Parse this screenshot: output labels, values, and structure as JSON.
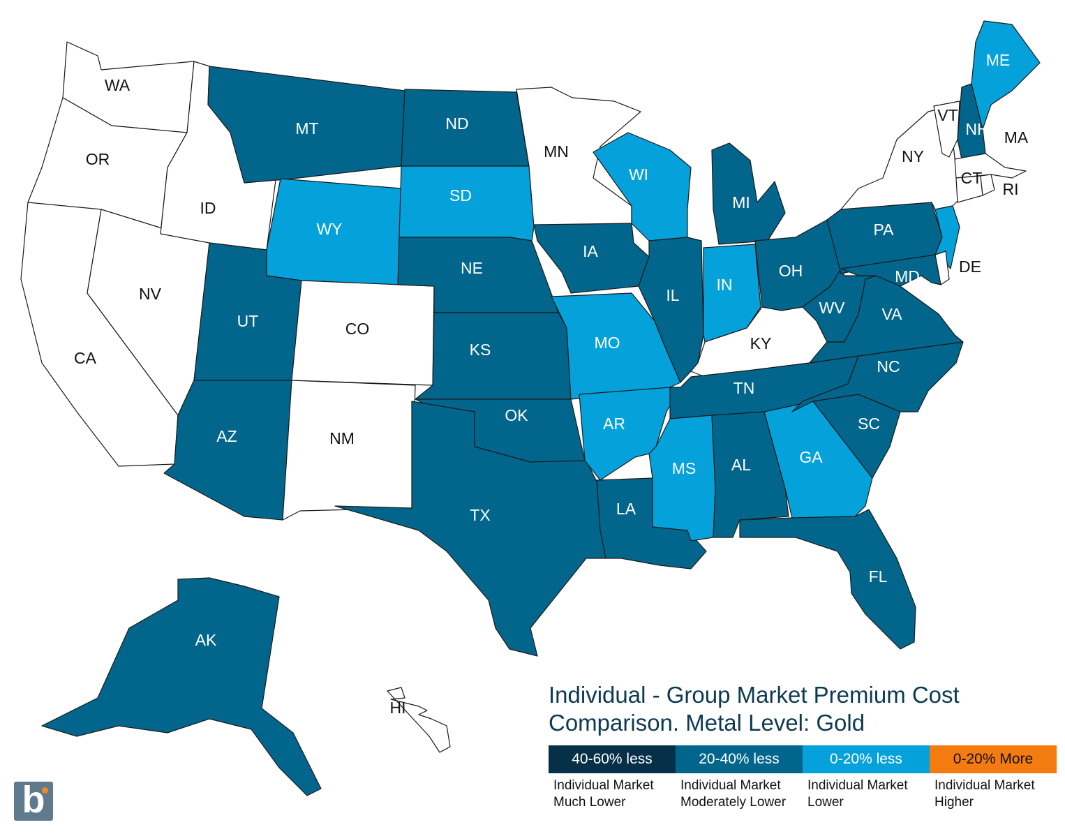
{
  "title": "Individual - Group Market Premium Cost Comparison. Metal Level: Gold",
  "legend": [
    {
      "label": "40-60% less",
      "description": "Individual Market Much Lower",
      "color": "#063047",
      "text_color": "#ffffff"
    },
    {
      "label": "20-40% less",
      "description": "Individual Market Moderately Lower",
      "color": "#02668c",
      "text_color": "#ffffff"
    },
    {
      "label": "0-20% less",
      "description": "Individual Market Lower",
      "color": "#04a1db",
      "text_color": "#ffffff"
    },
    {
      "label": "0-20% More",
      "description": "Individual Market Higher",
      "color": "#f47b0f",
      "text_color": "#111111"
    }
  ],
  "no_data_color": "#ffffff",
  "logo_icon": "b-logo-icon",
  "states": {
    "WA": {
      "category": null
    },
    "OR": {
      "category": null
    },
    "CA": {
      "category": null
    },
    "NV": {
      "category": null
    },
    "ID": {
      "category": null
    },
    "MT": {
      "category": "20-40% less"
    },
    "WY": {
      "category": "0-20% less"
    },
    "UT": {
      "category": "20-40% less"
    },
    "AZ": {
      "category": "20-40% less"
    },
    "CO": {
      "category": null
    },
    "NM": {
      "category": null
    },
    "ND": {
      "category": "20-40% less"
    },
    "SD": {
      "category": "0-20% less"
    },
    "NE": {
      "category": "20-40% less"
    },
    "KS": {
      "category": "20-40% less"
    },
    "OK": {
      "category": "20-40% less"
    },
    "TX": {
      "category": "20-40% less"
    },
    "MN": {
      "category": null
    },
    "IA": {
      "category": "20-40% less"
    },
    "MO": {
      "category": "0-20% less"
    },
    "AR": {
      "category": "0-20% less"
    },
    "LA": {
      "category": "20-40% less"
    },
    "WI": {
      "category": "0-20% less"
    },
    "IL": {
      "category": "20-40% less"
    },
    "MI": {
      "category": "20-40% less"
    },
    "IN": {
      "category": "0-20% less"
    },
    "OH": {
      "category": "20-40% less"
    },
    "KY": {
      "category": null
    },
    "TN": {
      "category": "20-40% less"
    },
    "MS": {
      "category": "0-20% less"
    },
    "AL": {
      "category": "20-40% less"
    },
    "GA": {
      "category": "0-20% less"
    },
    "FL": {
      "category": "20-40% less"
    },
    "SC": {
      "category": "20-40% less"
    },
    "NC": {
      "category": "20-40% less"
    },
    "VA": {
      "category": "20-40% less"
    },
    "WV": {
      "category": "20-40% less"
    },
    "PA": {
      "category": "20-40% less"
    },
    "NY": {
      "category": null
    },
    "VT": {
      "category": null
    },
    "NH": {
      "category": "20-40% less"
    },
    "ME": {
      "category": "0-20% less"
    },
    "MA": {
      "category": null
    },
    "CT": {
      "category": null
    },
    "RI": {
      "category": null
    },
    "NJ": {
      "category": "0-20% less"
    },
    "DE": {
      "category": null
    },
    "MD": {
      "category": "20-40% less"
    },
    "AK": {
      "category": "20-40% less"
    },
    "HI": {
      "category": null
    }
  }
}
